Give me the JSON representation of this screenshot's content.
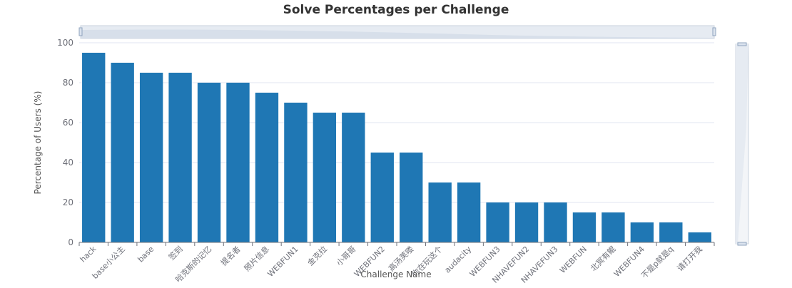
{
  "chart_data": {
    "type": "bar",
    "title": "Solve Percentages per Challenge",
    "xlabel": "Challenge Name",
    "ylabel": "Percentage of Users (%)",
    "ylim": [
      0,
      100
    ],
    "yticks": [
      0,
      20,
      40,
      60,
      80,
      100
    ],
    "grid": true,
    "categories": [
      "hack",
      "base小公主",
      "base",
      "签到",
      "哈克斯的记忆",
      "提名者",
      "照片信息",
      "WEBFUN1",
      "金克拉",
      "小哥哥",
      "WEBFUN2",
      "高汤荚喽",
      "你在玩这个",
      "audacity",
      "WEBFUN3",
      "NHAVEFUN2",
      "NHAVEFUN3",
      "WEBFUN",
      "北冥有鲲",
      "WEBFUN4",
      "不是p就是q",
      "请打开我"
    ],
    "values": [
      95,
      90,
      85,
      85,
      80,
      80,
      75,
      70,
      65,
      65,
      45,
      45,
      30,
      30,
      20,
      20,
      20,
      15,
      15,
      10,
      10,
      5
    ],
    "colors": {
      "bar": "#1f77b4",
      "axis": "#6e7079",
      "grid": "#e0e6f1",
      "slider_fill": "#e6ebf2",
      "slider_border": "#b5c2d3"
    },
    "zoom_sliders": [
      "horizontal-top",
      "vertical-right"
    ]
  }
}
